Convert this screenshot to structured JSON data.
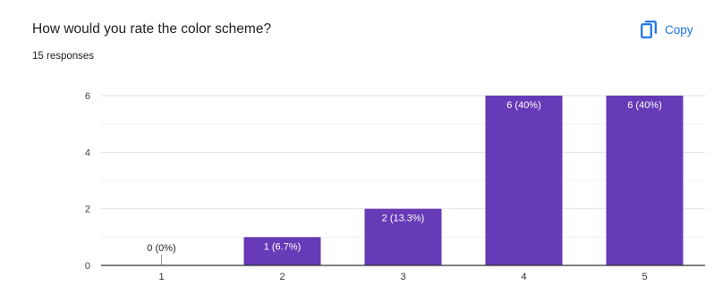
{
  "header": {
    "question": "How would you rate the color scheme?",
    "responses": "15 responses",
    "copy_label": "Copy",
    "copy_icon": "copy-icon"
  },
  "colors": {
    "bar": "#673ab7",
    "accent": "#1a73e8",
    "grid": "#e6e6e6",
    "axis": "#333333",
    "bar_label": "#ffffff",
    "outside_label": "#222222"
  },
  "chart_data": {
    "type": "bar",
    "categories": [
      "1",
      "2",
      "3",
      "4",
      "5"
    ],
    "values": [
      0,
      1,
      2,
      6,
      6
    ],
    "data_labels": [
      "0 (0%)",
      "1 (6.7%)",
      "2 (13.3%)",
      "6 (40%)",
      "6 (40%)"
    ],
    "ylim": [
      0,
      6
    ],
    "yticks": [
      "0",
      "2",
      "4",
      "6"
    ],
    "grid": true,
    "xlabel": "",
    "ylabel": ""
  }
}
